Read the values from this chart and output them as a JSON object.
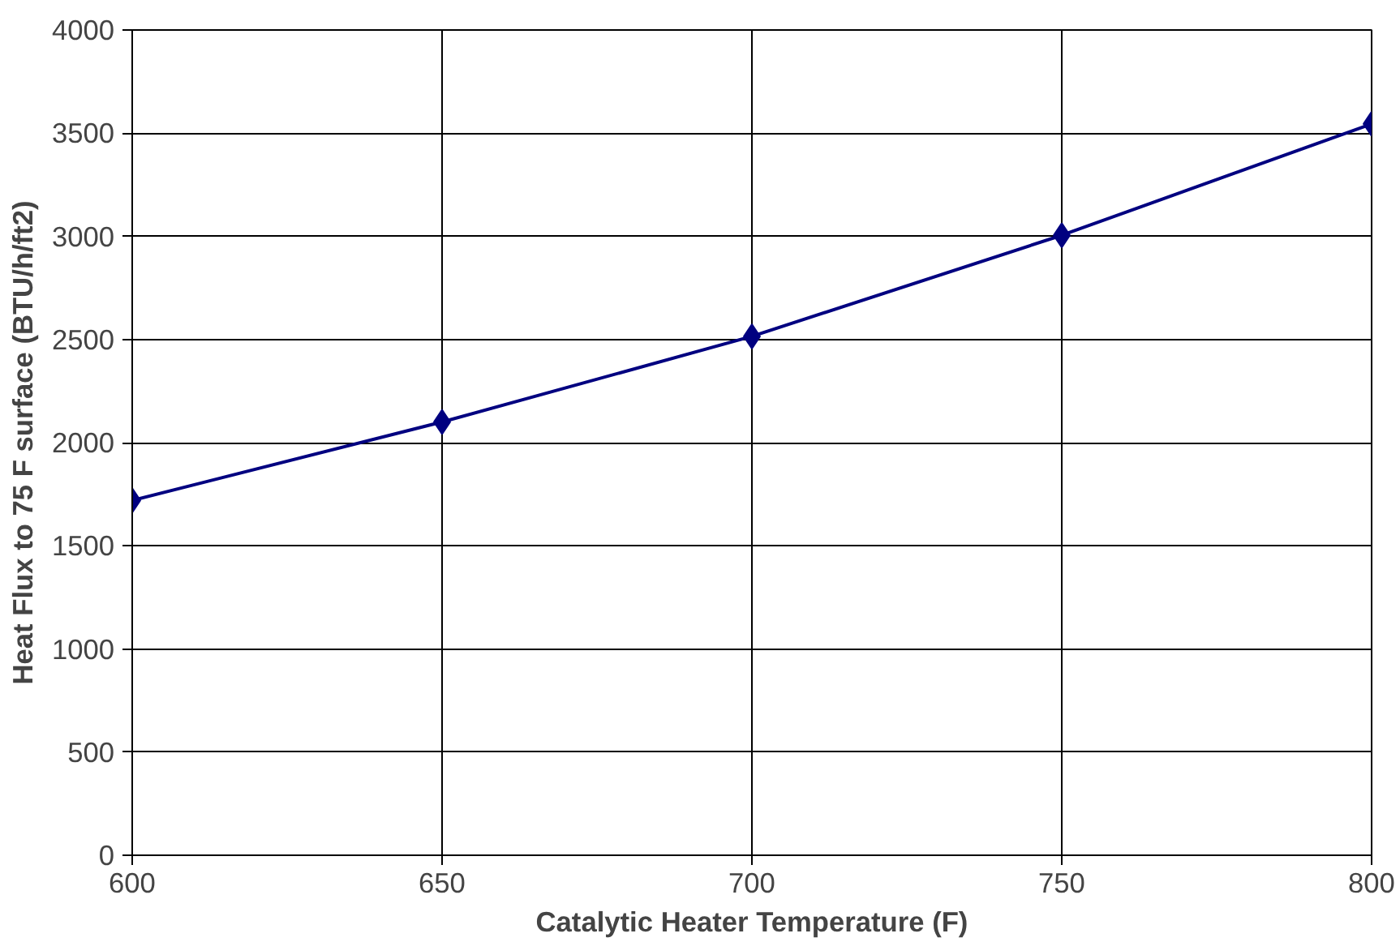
{
  "chart_data": {
    "type": "line",
    "xlabel": "Catalytic Heater Temperature (F)",
    "ylabel": "Heat Flux to 75 F surface (BTU/h/ft2)",
    "x": [
      600,
      650,
      700,
      750,
      800
    ],
    "series": [
      {
        "color": "#000080",
        "values": [
          1720,
          2100,
          2515,
          3005,
          3545
        ]
      }
    ],
    "xlim": [
      600,
      800
    ],
    "xticks": [
      600,
      650,
      700,
      750,
      800
    ],
    "ylim": [
      0,
      4000
    ],
    "yticks": [
      0,
      500,
      1000,
      1500,
      2000,
      2500,
      3000,
      3500,
      4000
    ],
    "grid": true,
    "marker": "diamond",
    "line_style": "solid"
  }
}
